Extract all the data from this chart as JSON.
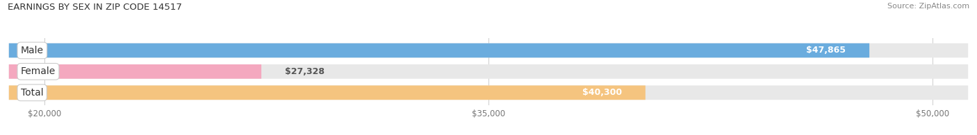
{
  "title": "EARNINGS BY SEX IN ZIP CODE 14517",
  "source": "Source: ZipAtlas.com",
  "categories": [
    "Male",
    "Female",
    "Total"
  ],
  "values": [
    47865,
    27328,
    40300
  ],
  "colors": [
    "#6aacde",
    "#f4a8bf",
    "#f5c47f"
  ],
  "bar_bg_color": "#e8e8e8",
  "label_texts": [
    "$47,865",
    "$27,328",
    "$40,300"
  ],
  "xmin": 20000,
  "xmax": 50000,
  "xticks": [
    20000,
    35000,
    50000
  ],
  "xtick_labels": [
    "$20,000",
    "$35,000",
    "$50,000"
  ],
  "title_fontsize": 9.5,
  "source_fontsize": 8,
  "label_fontsize": 9,
  "cat_fontsize": 10
}
